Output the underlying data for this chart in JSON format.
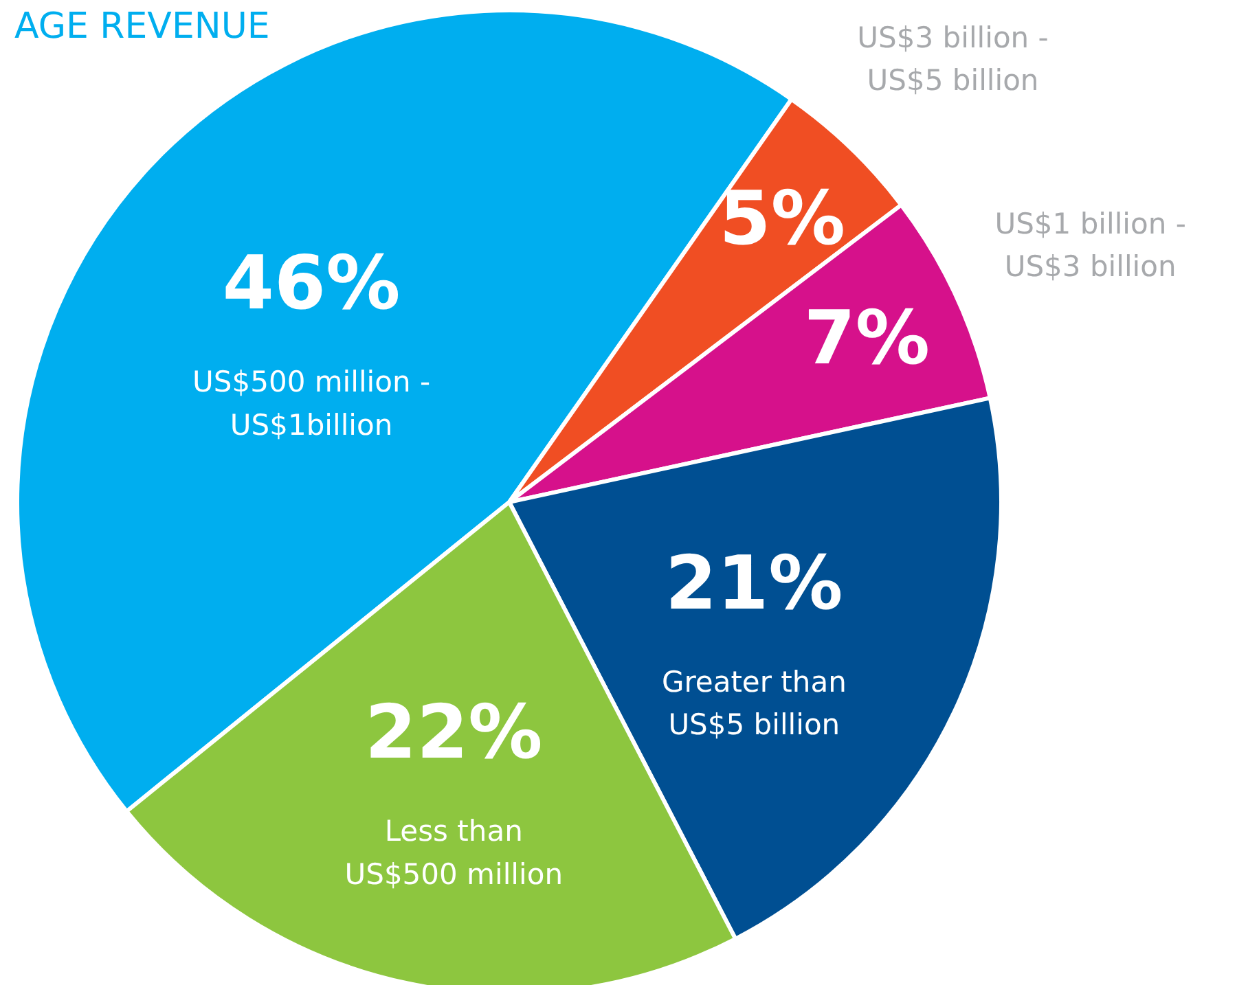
{
  "chart_data": {
    "type": "pie",
    "title": "AGE REVENUE",
    "categories": [
      "US$500 million -\nUS$1billion",
      "US$3 billion -\nUS$5 billion",
      "US$1 billion -\nUS$3 billion",
      "Greater than\nUS$5 billion",
      "Less than\nUS$500 million"
    ],
    "values": [
      46,
      5,
      7,
      21,
      22
    ],
    "value_labels": [
      "46%",
      "5%",
      "7%",
      "21%",
      "22%"
    ],
    "colors": [
      "#00aeef",
      "#f04e23",
      "#d6118b",
      "#004f92",
      "#8dc63f"
    ]
  }
}
